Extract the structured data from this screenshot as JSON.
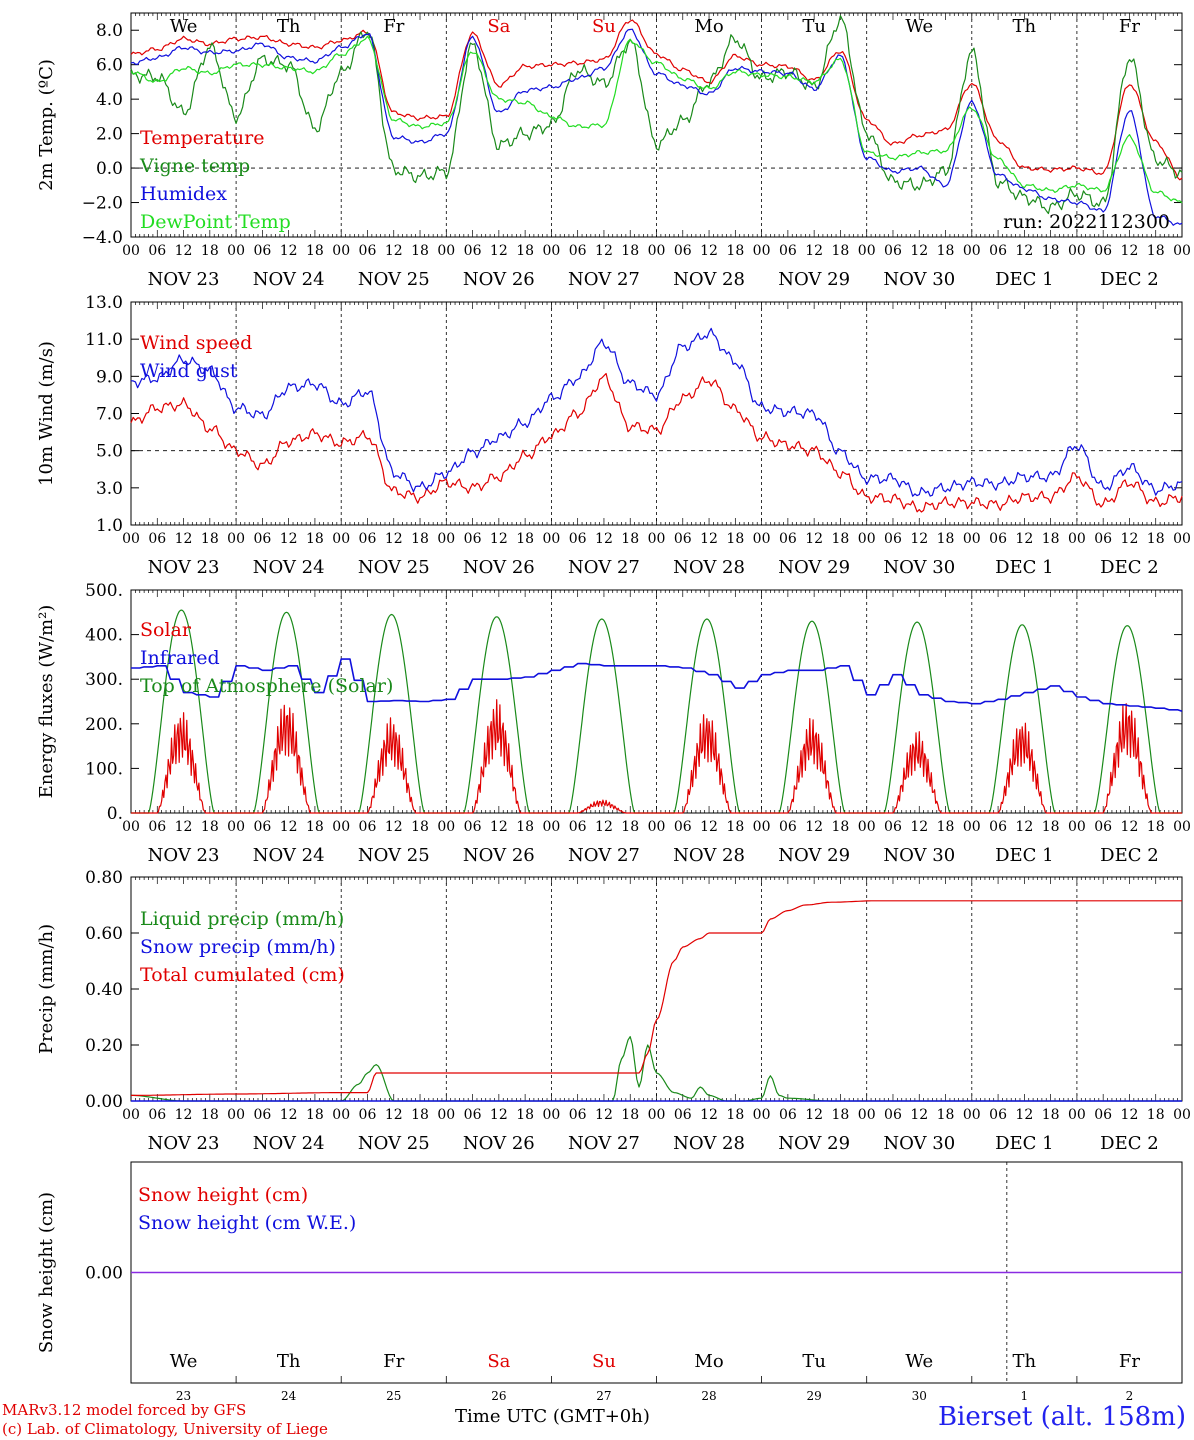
{
  "days": [
    "NOV 23",
    "NOV 24",
    "NOV 25",
    "NOV 26",
    "NOV 27",
    "NOV 28",
    "NOV 29",
    "NOV 30",
    "DEC  1",
    "DEC  2"
  ],
  "hour_ticks": [
    "00",
    "06",
    "12",
    "18"
  ],
  "final_hour_tick": "00",
  "weekday_labels": [
    {
      "text": "We",
      "color": "#000000"
    },
    {
      "text": "Th",
      "color": "#000000"
    },
    {
      "text": "Fr",
      "color": "#000000"
    },
    {
      "text": "Sa",
      "color": "#e00000"
    },
    {
      "text": "Su",
      "color": "#e00000"
    },
    {
      "text": "Mo",
      "color": "#000000"
    },
    {
      "text": "Tu",
      "color": "#000000"
    },
    {
      "text": "We",
      "color": "#000000"
    },
    {
      "text": "Th",
      "color": "#000000"
    },
    {
      "text": "Fr",
      "color": "#000000"
    }
  ],
  "day_numbers": [
    "23",
    "24",
    "25",
    "26",
    "27",
    "28",
    "29",
    "30",
    "1",
    "2"
  ],
  "colors": {
    "red": "#e00000",
    "green": "#1a8a1a",
    "blue": "#1010dd",
    "lightgreen": "#22dd22",
    "purple": "#8a2be2"
  },
  "chart_data": [
    {
      "type": "line",
      "ylabel": "2m Temp. (ºC)",
      "ylim": [
        -4,
        9
      ],
      "yticks": [
        "8.0",
        "6.0",
        "4.0",
        "2.0",
        "0.0",
        "−2.0",
        "−4.0"
      ],
      "ytick_values": [
        8,
        6,
        4,
        2,
        0,
        -2,
        -4
      ],
      "hline": 0,
      "run_label": "run: 2022112300",
      "x_hours": [
        0,
        6,
        12,
        18,
        24,
        30,
        36,
        42,
        48,
        54,
        60,
        66,
        72,
        78,
        84,
        90,
        96,
        102,
        108,
        114,
        120,
        126,
        132,
        138,
        144,
        150,
        156,
        162,
        168,
        174,
        180,
        186,
        192,
        198,
        204,
        210,
        216,
        222,
        228,
        234,
        240
      ],
      "series": [
        {
          "name": "Temperature",
          "color": "red",
          "values": [
            6.6,
            6.9,
            7.5,
            7.2,
            7.5,
            7.6,
            7.2,
            7.0,
            7.4,
            7.9,
            3.2,
            2.9,
            3.0,
            7.8,
            4.8,
            5.9,
            6.0,
            6.1,
            6.3,
            8.6,
            6.6,
            5.7,
            5.0,
            6.5,
            6.0,
            5.9,
            5.1,
            6.8,
            2.8,
            1.4,
            1.9,
            2.2,
            4.9,
            1.6,
            0.0,
            -0.1,
            0.0,
            -0.3,
            4.9,
            1.5,
            -0.6
          ]
        },
        {
          "name": "Vigne temp",
          "color": "green",
          "values": [
            5.4,
            5.3,
            3.2,
            7.0,
            3.0,
            6.3,
            6.0,
            2.3,
            5.5,
            8.0,
            -0.1,
            -0.5,
            -0.2,
            7.1,
            1.3,
            2.0,
            2.5,
            5.7,
            4.9,
            7.3,
            1.4,
            2.7,
            5.0,
            7.5,
            5.2,
            5.6,
            4.7,
            8.6,
            2.1,
            -0.8,
            -1.0,
            -0.2,
            6.7,
            -0.8,
            -1.7,
            -2.3,
            -1.5,
            -2.1,
            6.4,
            0.5,
            -0.3
          ]
        },
        {
          "name": "Humidex",
          "color": "blue",
          "values": [
            6.1,
            6.4,
            7.0,
            6.7,
            6.8,
            7.2,
            6.4,
            6.2,
            7.0,
            7.8,
            1.8,
            1.5,
            2.0,
            7.6,
            3.2,
            4.5,
            4.7,
            5.2,
            5.8,
            8.0,
            5.5,
            4.8,
            4.3,
            5.8,
            5.6,
            5.5,
            4.6,
            6.5,
            0.6,
            -0.2,
            0.0,
            -1.0,
            3.8,
            -0.4,
            -1.2,
            -1.8,
            -2.0,
            -2.5,
            3.3,
            -2.8,
            -3.3
          ]
        },
        {
          "name": "DewPoint Temp",
          "color": "lightgreen",
          "values": [
            5.6,
            5.0,
            5.8,
            5.5,
            6.0,
            6.0,
            5.8,
            5.6,
            6.6,
            7.5,
            2.8,
            2.4,
            2.6,
            6.8,
            4.0,
            3.8,
            3.0,
            2.4,
            2.5,
            7.4,
            6.1,
            5.2,
            4.6,
            5.6,
            5.4,
            5.3,
            5.0,
            6.3,
            0.9,
            0.6,
            0.9,
            1.0,
            3.5,
            0.5,
            -1.0,
            -1.3,
            -1.0,
            -1.3,
            1.8,
            -1.4,
            -2.0
          ]
        }
      ]
    },
    {
      "type": "line",
      "ylabel": "10m Wind (m/s)",
      "ylim": [
        1,
        13
      ],
      "yticks": [
        "13.0",
        "11.0",
        "9.0",
        "7.0",
        "5.0",
        "3.0",
        "1.0"
      ],
      "ytick_values": [
        13,
        11,
        9,
        7,
        5,
        3,
        1
      ],
      "hline": 5,
      "x_hours": [
        0,
        6,
        12,
        18,
        24,
        30,
        36,
        42,
        48,
        54,
        60,
        66,
        72,
        78,
        84,
        90,
        96,
        102,
        108,
        114,
        120,
        126,
        132,
        138,
        144,
        150,
        156,
        162,
        168,
        174,
        180,
        186,
        192,
        198,
        204,
        210,
        216,
        222,
        228,
        234,
        240
      ],
      "series": [
        {
          "name": "Wind speed",
          "color": "red",
          "values": [
            6.5,
            7.3,
            7.5,
            6.2,
            5.0,
            4.2,
            5.5,
            5.9,
            5.4,
            5.8,
            2.8,
            2.5,
            3.3,
            3.0,
            3.6,
            4.7,
            5.8,
            7.0,
            8.9,
            6.3,
            6.1,
            7.8,
            8.8,
            7.2,
            5.7,
            5.3,
            5.0,
            3.8,
            2.5,
            2.4,
            1.9,
            2.2,
            2.2,
            2.1,
            2.5,
            2.5,
            3.6,
            2.1,
            3.3,
            2.2,
            2.5
          ]
        },
        {
          "name": "Wind gust",
          "color": "blue",
          "values": [
            8.7,
            8.9,
            9.9,
            9.3,
            7.3,
            6.9,
            8.4,
            8.6,
            7.5,
            8.2,
            3.8,
            3.0,
            3.8,
            4.9,
            5.7,
            6.5,
            7.8,
            8.9,
            10.8,
            8.6,
            8.0,
            10.6,
            11.3,
            9.8,
            7.3,
            7.1,
            7.0,
            4.9,
            3.5,
            3.5,
            2.7,
            3.0,
            3.3,
            3.2,
            3.6,
            3.6,
            5.3,
            3.0,
            4.1,
            2.9,
            3.2
          ]
        }
      ]
    },
    {
      "type": "line",
      "ylabel": "Energy fluxes (W/m²)",
      "ylim": [
        0,
        500
      ],
      "yticks": [
        "500.",
        "400.",
        "300.",
        "200.",
        "100.",
        "0."
      ],
      "ytick_values": [
        500,
        400,
        300,
        200,
        100,
        0
      ],
      "series": [
        {
          "name": "Solar",
          "color": "red",
          "peaks": [
            {
              "center": 11.5,
              "value": 230
            },
            {
              "center": 35.5,
              "value": 255
            },
            {
              "center": 59.5,
              "value": 215
            },
            {
              "center": 83.5,
              "value": 255
            },
            {
              "center": 107.5,
              "value": 30
            },
            {
              "center": 131.5,
              "value": 230
            },
            {
              "center": 155.5,
              "value": 215
            },
            {
              "center": 179.5,
              "value": 185
            },
            {
              "center": 203.5,
              "value": 210
            },
            {
              "center": 227.5,
              "value": 255
            }
          ]
        },
        {
          "name": "Infrared",
          "color": "blue",
          "x_hours": [
            0,
            6,
            12,
            18,
            24,
            30,
            36,
            42,
            48,
            54,
            60,
            66,
            72,
            78,
            84,
            90,
            96,
            102,
            108,
            114,
            120,
            126,
            132,
            138,
            144,
            150,
            156,
            162,
            168,
            174,
            180,
            186,
            192,
            198,
            204,
            210,
            216,
            222,
            228,
            234,
            240
          ],
          "values": [
            325,
            330,
            270,
            260,
            330,
            320,
            330,
            270,
            345,
            250,
            252,
            250,
            255,
            300,
            300,
            305,
            320,
            335,
            330,
            330,
            330,
            325,
            310,
            280,
            310,
            320,
            320,
            330,
            265,
            310,
            265,
            250,
            245,
            255,
            270,
            285,
            260,
            245,
            240,
            235,
            228
          ]
        },
        {
          "name": "Top of Atmosphere (Solar)",
          "color": "green",
          "peaks": [
            {
              "center": 11.5,
              "value": 455
            },
            {
              "center": 35.5,
              "value": 450
            },
            {
              "center": 59.5,
              "value": 445
            },
            {
              "center": 83.5,
              "value": 440
            },
            {
              "center": 107.5,
              "value": 435
            },
            {
              "center": 131.5,
              "value": 435
            },
            {
              "center": 155.5,
              "value": 430
            },
            {
              "center": 179.5,
              "value": 428
            },
            {
              "center": 203.5,
              "value": 422
            },
            {
              "center": 227.5,
              "value": 420
            }
          ]
        }
      ]
    },
    {
      "type": "line",
      "ylabel": "Precip (mm/h)",
      "ylim": [
        0,
        0.8
      ],
      "yticks": [
        "0.80",
        "0.60",
        "0.40",
        "0.20",
        "0.00"
      ],
      "ytick_values": [
        0.8,
        0.6,
        0.4,
        0.2,
        0
      ],
      "series": [
        {
          "name": "Liquid precip (mm/h)",
          "color": "green",
          "x_hours": [
            0,
            12,
            24,
            48,
            52,
            54,
            56,
            60,
            72,
            96,
            110,
            112,
            114,
            116,
            118,
            120,
            124,
            128,
            130,
            132,
            136,
            140,
            144,
            146,
            148,
            150,
            160,
            180,
            240
          ],
          "values": [
            0.02,
            0.0,
            0.0,
            0.0,
            0.06,
            0.1,
            0.13,
            0.0,
            0.0,
            0.0,
            0.0,
            0.15,
            0.23,
            0.05,
            0.2,
            0.1,
            0.03,
            0.01,
            0.05,
            0.02,
            0.0,
            0.0,
            0.01,
            0.09,
            0.02,
            0.01,
            0.0,
            0.0,
            0.0
          ]
        },
        {
          "name": "Snow precip (mm/h)",
          "color": "blue",
          "x_hours": [
            0,
            240
          ],
          "values": [
            0.0,
            0.0
          ]
        },
        {
          "name": "Total cumulated (cm)",
          "color": "red",
          "x_hours": [
            0,
            24,
            48,
            54,
            56,
            58,
            72,
            96,
            116,
            118,
            120,
            124,
            126,
            130,
            132,
            136,
            144,
            146,
            150,
            154,
            160,
            170,
            180,
            240
          ],
          "values": [
            0.02,
            0.025,
            0.03,
            0.03,
            0.1,
            0.1,
            0.1,
            0.1,
            0.1,
            0.17,
            0.29,
            0.5,
            0.55,
            0.58,
            0.6,
            0.6,
            0.6,
            0.65,
            0.68,
            0.7,
            0.71,
            0.715,
            0.715,
            0.715
          ]
        }
      ]
    },
    {
      "type": "line",
      "ylabel": "Snow height (cm)",
      "ylim": [
        -1,
        1
      ],
      "yticks": [
        "0.00"
      ],
      "ytick_values": [
        0
      ],
      "series": [
        {
          "name": "Snow height (cm)",
          "color": "red",
          "x_hours": [
            0,
            240
          ],
          "values": [
            0,
            0
          ]
        },
        {
          "name": "Snow height (cm W.E.)",
          "color": "blue",
          "x_hours": [
            0,
            240
          ],
          "values": [
            0,
            0
          ]
        }
      ]
    }
  ],
  "footer": {
    "model_line1": "MARv3.12 model forced by GFS",
    "model_line2": "(c) Lab. of Climatology, University of Liege",
    "xaxis_label": "Time UTC (GMT+0h)",
    "station": "Bierset (alt. 158m)"
  }
}
